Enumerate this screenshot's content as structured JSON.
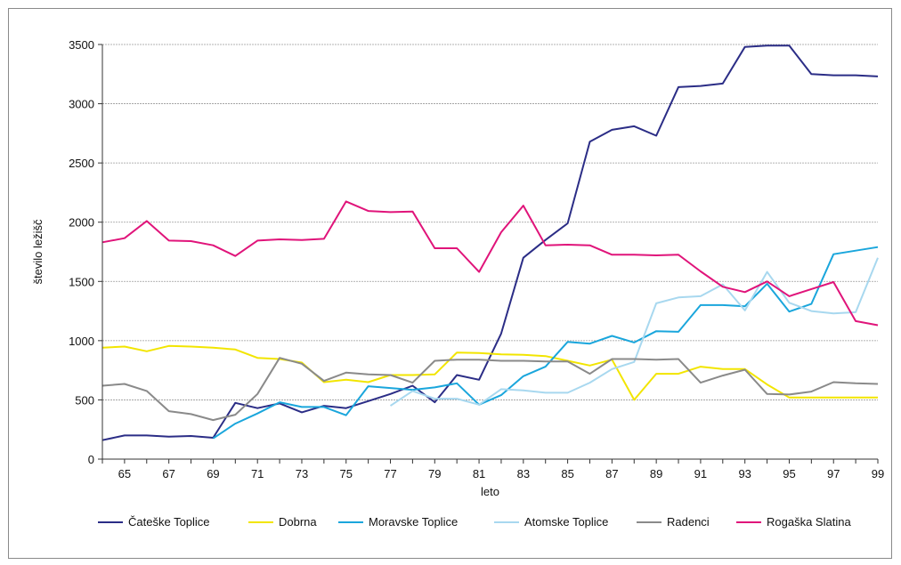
{
  "chart_data": {
    "type": "line",
    "xlabel": "leto",
    "ylabel": "število ležišč",
    "ylim": [
      0,
      3500
    ],
    "yticks": [
      0,
      500,
      1000,
      1500,
      2000,
      2500,
      3000,
      3500
    ],
    "xticks": [
      "65",
      "67",
      "69",
      "71",
      "73",
      "75",
      "77",
      "79",
      "81",
      "83",
      "85",
      "87",
      "89",
      "91",
      "93",
      "95",
      "97",
      "99"
    ],
    "grid": true,
    "legend": "bottom",
    "x": [
      64,
      65,
      66,
      67,
      68,
      69,
      70,
      71,
      72,
      73,
      74,
      75,
      76,
      77,
      78,
      79,
      80,
      81,
      82,
      83,
      84,
      85,
      86,
      87,
      88,
      89,
      90,
      91,
      92,
      93,
      94,
      95,
      96,
      97,
      98,
      99
    ],
    "series": [
      {
        "name": "Čateške Toplice",
        "color": "#2b2d86",
        "values": [
          160,
          200,
          200,
          190,
          195,
          180,
          475,
          430,
          470,
          395,
          450,
          430,
          490,
          550,
          620,
          480,
          710,
          670,
          1060,
          1700,
          1850,
          1990,
          2680,
          2780,
          2810,
          2730,
          3140,
          3150,
          3170,
          3480,
          3490,
          3490,
          3250,
          3240,
          3240,
          3230
        ]
      },
      {
        "name": "Dobrna",
        "color": "#f2e500",
        "values": [
          940,
          950,
          910,
          955,
          950,
          940,
          925,
          855,
          845,
          815,
          650,
          670,
          650,
          710,
          710,
          715,
          900,
          895,
          885,
          880,
          870,
          830,
          790,
          840,
          500,
          720,
          720,
          780,
          760,
          760,
          630,
          520,
          520,
          520,
          520,
          520
        ]
      },
      {
        "name": "Moravske Toplice",
        "color": "#1aa6dc",
        "values": [
          null,
          null,
          null,
          null,
          null,
          175,
          300,
          385,
          480,
          440,
          440,
          370,
          615,
          600,
          585,
          605,
          640,
          460,
          540,
          700,
          780,
          990,
          975,
          1040,
          985,
          1080,
          1075,
          1300,
          1300,
          1290,
          1480,
          1245,
          1310,
          1730,
          1760,
          1790
        ]
      },
      {
        "name": "Atomske Toplice",
        "color": "#a8d8ef",
        "values": [
          null,
          null,
          null,
          null,
          null,
          null,
          null,
          null,
          null,
          null,
          null,
          null,
          null,
          450,
          575,
          510,
          510,
          460,
          590,
          580,
          560,
          560,
          645,
          760,
          820,
          1315,
          1365,
          1375,
          1475,
          1255,
          1580,
          1320,
          1250,
          1230,
          1240,
          1700
        ]
      },
      {
        "name": "Radenci",
        "color": "#8a8a8a",
        "values": [
          620,
          635,
          575,
          405,
          380,
          330,
          375,
          550,
          855,
          805,
          660,
          730,
          715,
          710,
          645,
          830,
          840,
          840,
          830,
          830,
          825,
          825,
          720,
          845,
          845,
          840,
          845,
          645,
          705,
          755,
          550,
          545,
          570,
          650,
          640,
          635
        ]
      },
      {
        "name": "Rogaška Slatina",
        "color": "#e0147a",
        "values": [
          1830,
          1865,
          2010,
          1845,
          1840,
          1805,
          1715,
          1845,
          1855,
          1850,
          1860,
          2175,
          2095,
          2085,
          2090,
          1780,
          1780,
          1580,
          1915,
          2140,
          1805,
          1810,
          1805,
          1725,
          1725,
          1720,
          1725,
          1585,
          1455,
          1410,
          1500,
          1375,
          1435,
          1495,
          1165,
          1130
        ]
      }
    ]
  }
}
